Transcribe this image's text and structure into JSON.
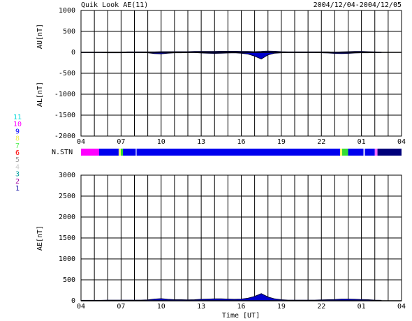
{
  "chart_data": [
    {
      "type": "area",
      "title": "Quik Look AE(11)",
      "subtitle": "2004/12/04-2004/12/05",
      "ylabel_upper": "AU[nT]",
      "ylabel_lower": "AL[nT]",
      "x": [
        0,
        0.5,
        1,
        1.5,
        2,
        2.5,
        3,
        3.5,
        4,
        4.5,
        5,
        5.5,
        6,
        6.5,
        7,
        7.5,
        8,
        8.5,
        9,
        9.5,
        10,
        10.5,
        11,
        11.5,
        12,
        12.5,
        13,
        13.5,
        14,
        14.5,
        15,
        15.5,
        16,
        16.5,
        17,
        17.5,
        18,
        18.5,
        19,
        19.5,
        20,
        20.5,
        21,
        21.5,
        22,
        22.5
      ],
      "series": [
        {
          "color": "#0000cc",
          "values": [
            5,
            5,
            5,
            5,
            5,
            5,
            5,
            10,
            10,
            10,
            10,
            10,
            15,
            15,
            15,
            15,
            15,
            20,
            20,
            20,
            20,
            25,
            25,
            25,
            20,
            20,
            15,
            20,
            30,
            25,
            15,
            10,
            10,
            10,
            10,
            10,
            10,
            10,
            5,
            10,
            15,
            20,
            20,
            15,
            10,
            5
          ]
        },
        {
          "color": "#0000cc",
          "values": [
            -5,
            -5,
            -5,
            -5,
            -10,
            -10,
            -10,
            -5,
            -5,
            -5,
            -10,
            -30,
            -35,
            -20,
            -10,
            -10,
            -5,
            -5,
            -15,
            -20,
            -25,
            -20,
            -15,
            -10,
            -20,
            -40,
            -90,
            -160,
            -60,
            -20,
            -10,
            -5,
            -5,
            -5,
            -5,
            -5,
            -10,
            -15,
            -25,
            -30,
            -25,
            -15,
            -10,
            -10,
            -5,
            -5
          ]
        }
      ],
      "xlim": [
        0,
        24
      ],
      "xticks": [
        {
          "value": 0,
          "label": "04"
        },
        {
          "value": 3,
          "label": "07"
        },
        {
          "value": 6,
          "label": "10"
        },
        {
          "value": 9,
          "label": "13"
        },
        {
          "value": 12,
          "label": "16"
        },
        {
          "value": 15,
          "label": "19"
        },
        {
          "value": 18,
          "label": "22"
        },
        {
          "value": 21,
          "label": "01"
        },
        {
          "value": 24,
          "label": "04"
        }
      ],
      "xgrid_step": 1,
      "ylim": [
        -2000,
        1000
      ],
      "yticks": [
        -2000,
        -1500,
        -1000,
        -500,
        0,
        500,
        1000
      ],
      "grid": true
    },
    {
      "type": "segments",
      "label": "N.STN",
      "xlim": [
        0,
        24
      ],
      "segments": [
        {
          "start": 0,
          "end": 1.36,
          "color": "#ff00ff"
        },
        {
          "start": 1.36,
          "end": 2.82,
          "color": "#0000ee"
        },
        {
          "start": 2.82,
          "end": 2.98,
          "color": "#ffff66"
        },
        {
          "start": 2.98,
          "end": 3.14,
          "color": "#33dd33"
        },
        {
          "start": 3.14,
          "end": 4.1,
          "color": "#0000ee"
        },
        {
          "start": 4.16,
          "end": 19.4,
          "color": "#0000ee"
        },
        {
          "start": 19.4,
          "end": 19.55,
          "color": "#ffff66"
        },
        {
          "start": 19.55,
          "end": 20.0,
          "color": "#33dd33"
        },
        {
          "start": 20.0,
          "end": 21.15,
          "color": "#0000ee"
        },
        {
          "start": 21.25,
          "end": 22.0,
          "color": "#0000ee"
        },
        {
          "start": 22.0,
          "end": 22.2,
          "color": "#ff66ff"
        },
        {
          "start": 22.2,
          "end": 24,
          "color": "#00007a"
        }
      ],
      "legend": [
        {
          "label": "11",
          "color": "#00d8d8"
        },
        {
          "label": "10",
          "color": "#ff00ff"
        },
        {
          "label": "9",
          "color": "#0000ff"
        },
        {
          "label": "8",
          "color": "#eeee55"
        },
        {
          "label": "7",
          "color": "#55ee55"
        },
        {
          "label": "6",
          "color": "#ff0000"
        },
        {
          "label": "5",
          "color": "#a0a0a0"
        },
        {
          "label": "4",
          "color": "#cccccc"
        },
        {
          "label": "3",
          "color": "#009c9c"
        },
        {
          "label": "2",
          "color": "#a000a0"
        },
        {
          "label": "1",
          "color": "#0000a0"
        }
      ]
    },
    {
      "type": "area",
      "ylabel": "AE[nT]",
      "xlabel": "Time [UT]",
      "x": [
        0,
        0.5,
        1,
        1.5,
        2,
        2.5,
        3,
        3.5,
        4,
        4.5,
        5,
        5.5,
        6,
        6.5,
        7,
        7.5,
        8,
        8.5,
        9,
        9.5,
        10,
        10.5,
        11,
        11.5,
        12,
        12.5,
        13,
        13.5,
        14,
        14.5,
        15,
        15.5,
        16,
        16.5,
        17,
        17.5,
        18,
        18.5,
        19,
        19.5,
        20,
        20.5,
        21,
        21.5,
        22,
        22.5
      ],
      "series": [
        {
          "color": "#0000cc",
          "values": [
            10,
            10,
            10,
            10,
            15,
            15,
            15,
            15,
            15,
            15,
            20,
            40,
            50,
            35,
            25,
            25,
            20,
            25,
            35,
            40,
            45,
            45,
            40,
            35,
            40,
            60,
            105,
            170,
            90,
            45,
            25,
            15,
            15,
            15,
            15,
            15,
            20,
            25,
            30,
            40,
            40,
            35,
            30,
            25,
            15,
            10
          ]
        }
      ],
      "xlim": [
        0,
        24
      ],
      "xticks": [
        {
          "value": 0,
          "label": "04"
        },
        {
          "value": 3,
          "label": "07"
        },
        {
          "value": 6,
          "label": "10"
        },
        {
          "value": 9,
          "label": "13"
        },
        {
          "value": 12,
          "label": "16"
        },
        {
          "value": 15,
          "label": "19"
        },
        {
          "value": 18,
          "label": "22"
        },
        {
          "value": 21,
          "label": "01"
        },
        {
          "value": 24,
          "label": "04"
        }
      ],
      "xgrid_step": 1,
      "ylim": [
        0,
        3000
      ],
      "yticks": [
        0,
        500,
        1000,
        1500,
        2000,
        2500,
        3000
      ],
      "grid": true
    }
  ]
}
